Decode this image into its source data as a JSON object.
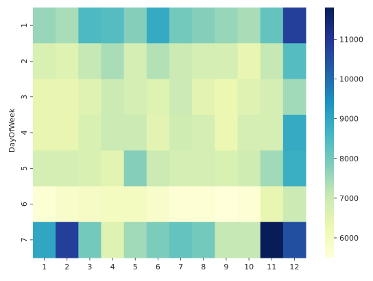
{
  "chart_data": {
    "type": "heatmap",
    "ylabel": "DayOfWeek",
    "xlabel": "",
    "x_categories": [
      "1",
      "2",
      "3",
      "4",
      "5",
      "6",
      "7",
      "8",
      "9",
      "10",
      "11",
      "12"
    ],
    "y_categories": [
      "1",
      "2",
      "3",
      "4",
      "5",
      "6",
      "7"
    ],
    "values": [
      [
        7600,
        7400,
        8500,
        8400,
        7800,
        8900,
        8000,
        7800,
        7600,
        7400,
        8200,
        10800
      ],
      [
        6700,
        6600,
        7100,
        7400,
        6800,
        7300,
        7000,
        6800,
        6800,
        6400,
        7100,
        8400
      ],
      [
        6400,
        6400,
        6600,
        7000,
        6800,
        6600,
        7000,
        6500,
        6300,
        6600,
        6800,
        7500
      ],
      [
        6400,
        6400,
        6700,
        7000,
        7000,
        6500,
        6900,
        6800,
        6300,
        6800,
        6800,
        8900
      ],
      [
        6800,
        6800,
        6700,
        6500,
        7800,
        7000,
        6800,
        6800,
        6700,
        6900,
        7500,
        8800
      ],
      [
        5600,
        5800,
        5900,
        6000,
        6000,
        5800,
        5600,
        5600,
        5500,
        5600,
        6400,
        7000
      ],
      [
        9000,
        10800,
        8000,
        6600,
        7500,
        7900,
        8200,
        8000,
        7100,
        7100,
        11800,
        10500
      ]
    ],
    "colorbar": {
      "min": 5500,
      "max": 11800,
      "ticks": [
        6000,
        7000,
        8000,
        9000,
        10000,
        11000
      ],
      "colormap": "YlGnBu"
    }
  }
}
